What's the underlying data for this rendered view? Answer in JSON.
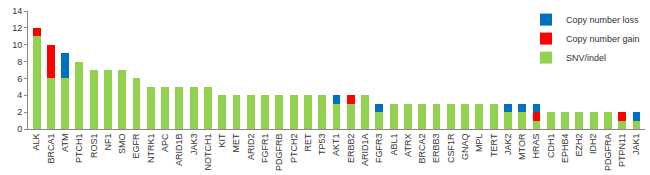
{
  "chart_data": {
    "type": "bar",
    "stacked": true,
    "categories": [
      "ALK",
      "BRCA1",
      "ATM",
      "PTCH1",
      "ROS1",
      "NF1",
      "SMO",
      "EGFR",
      "NTRK1",
      "APC",
      "ARID1B",
      "JAK3",
      "NOTCH1",
      "KIT",
      "MET",
      "ARID2",
      "FGFR1",
      "PDGFRB",
      "PTCH2",
      "RET",
      "TP53",
      "AKT1",
      "ERBB2",
      "ARID1A",
      "FGFR3",
      "ABL1",
      "ATRX",
      "BRCA2",
      "ERBB3",
      "CSF1R",
      "GNAQ",
      "MPL",
      "TERT",
      "JAK2",
      "MTOR",
      "HRAS",
      "CDH1",
      "EPHB4",
      "EZH2",
      "IDH2",
      "PDGFRA",
      "PTPN11",
      "JAK1"
    ],
    "series": [
      {
        "name": "SNV/indel",
        "color": "#92D050",
        "values": [
          11,
          6,
          6,
          8,
          7,
          7,
          7,
          6,
          5,
          5,
          5,
          5,
          5,
          4,
          4,
          4,
          4,
          4,
          4,
          4,
          4,
          3,
          3,
          4,
          2,
          3,
          3,
          3,
          3,
          3,
          3,
          3,
          3,
          2,
          2,
          1,
          2,
          2,
          2,
          2,
          2,
          1,
          1
        ]
      },
      {
        "name": "Copy number gain",
        "color": "#FF0000",
        "values": [
          1,
          4,
          0,
          0,
          0,
          0,
          0,
          0,
          0,
          0,
          0,
          0,
          0,
          0,
          0,
          0,
          0,
          0,
          0,
          0,
          0,
          0,
          1,
          0,
          0,
          0,
          0,
          0,
          0,
          0,
          0,
          0,
          0,
          0,
          0,
          1,
          0,
          0,
          0,
          0,
          0,
          1,
          0
        ]
      },
      {
        "name": "Copy number loss",
        "color": "#0070C0",
        "values": [
          0,
          0,
          3,
          0,
          0,
          0,
          0,
          0,
          0,
          0,
          0,
          0,
          0,
          0,
          0,
          0,
          0,
          0,
          0,
          0,
          0,
          1,
          0,
          0,
          1,
          0,
          0,
          0,
          0,
          0,
          0,
          0,
          0,
          1,
          1,
          1,
          0,
          0,
          0,
          0,
          0,
          0,
          1
        ]
      }
    ],
    "ylim": [
      0,
      14
    ],
    "yticks": [
      0,
      2,
      4,
      6,
      8,
      10,
      12,
      14
    ],
    "grid": false,
    "legend": "top-right"
  }
}
